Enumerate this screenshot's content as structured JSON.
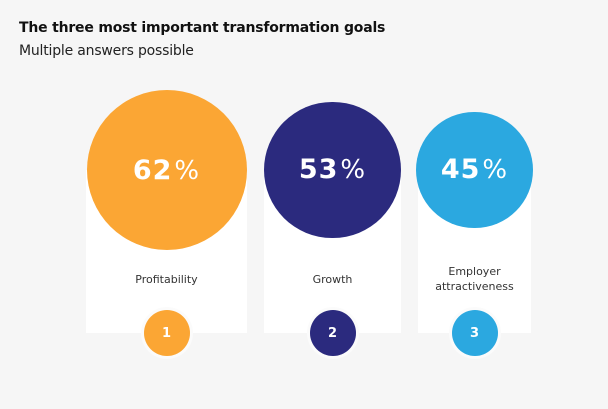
{
  "header": {
    "title": "The three most important transformation goals",
    "subtitle": "Multiple answers possible"
  },
  "chart_data": {
    "type": "bubble",
    "title": "The three most important transformation goals",
    "subtitle": "Multiple answers possible",
    "unit": "%",
    "categories": [
      "Profitability",
      "Growth",
      "Employer attractiveness"
    ],
    "values": [
      62,
      53,
      45
    ],
    "ranks": [
      "1",
      "2",
      "3"
    ],
    "colors": [
      "#fba634",
      "#2b2a7e",
      "#2ba8e0"
    ]
  }
}
